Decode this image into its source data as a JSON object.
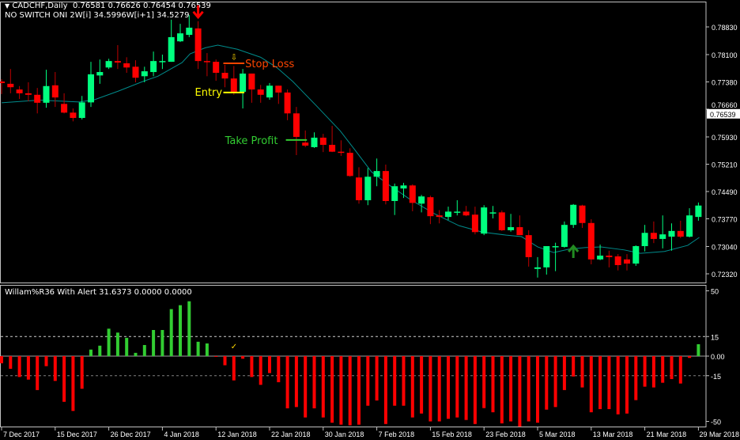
{
  "header": {
    "symbol_line": "CADCHF,Daily  0.76581 0.76626 0.76454 0.76539",
    "indicator_line": "NO SWITCH ONI 2W[i] 34.5996W[i+1] 34.5279",
    "subwindow_title": "Willam%R36 With Alert 31.6373 0.0000 0.0000"
  },
  "colors": {
    "background": "#000000",
    "bull_candle": "#00ff7f",
    "bear_candle": "#ff0000",
    "bear_wick": "#c00000",
    "moving_average": "#008b8b",
    "hist_positive": "#32cd32",
    "hist_negative": "#ff0000",
    "stop_loss": "#ff4500",
    "entry": "#ffff00",
    "take_profit": "#32cd32",
    "axis": "#c0c0c0"
  },
  "chart_data": [
    {
      "type": "candlestick",
      "symbol": "CADCHF",
      "timeframe": "Daily",
      "current_price": "0.76539",
      "y_ticks": [
        "0.78830",
        "0.78100",
        "0.77380",
        "0.76660",
        "0.75930",
        "0.75210",
        "0.74490",
        "0.73770",
        "0.73040",
        "0.72320"
      ],
      "ylim": [
        0.7232,
        0.7883
      ],
      "x_tick_labels": [
        "7 Dec 2017",
        "15 Dec 2017",
        "26 Dec 2017",
        "4 Jan 2018",
        "12 Jan 2018",
        "22 Jan 2018",
        "30 Jan 2018",
        "7 Feb 2018",
        "15 Feb 2018",
        "23 Feb 2018",
        "5 Mar 2018",
        "13 Mar 2018",
        "21 Mar 2018",
        "29 Mar 2018"
      ],
      "x_tick_every_bars": 6,
      "ohlc": [
        [
          0.7739,
          0.7745,
          0.7706,
          0.7735
        ],
        [
          0.7733,
          0.7772,
          0.7708,
          0.7724
        ],
        [
          0.7718,
          0.7727,
          0.7693,
          0.7708
        ],
        [
          0.7708,
          0.7737,
          0.7687,
          0.7704
        ],
        [
          0.7704,
          0.7722,
          0.7655,
          0.7683
        ],
        [
          0.7683,
          0.777,
          0.767,
          0.7727
        ],
        [
          0.7729,
          0.7764,
          0.7672,
          0.7697
        ],
        [
          0.768,
          0.7708,
          0.7655,
          0.7657
        ],
        [
          0.7657,
          0.7668,
          0.7634,
          0.7643
        ],
        [
          0.7643,
          0.7701,
          0.7639,
          0.7684
        ],
        [
          0.7684,
          0.7791,
          0.7672,
          0.7758
        ],
        [
          0.7755,
          0.7797,
          0.7733,
          0.7764
        ],
        [
          0.7776,
          0.7799,
          0.7772,
          0.7793
        ],
        [
          0.7793,
          0.7835,
          0.7772,
          0.7789
        ],
        [
          0.7787,
          0.7803,
          0.7762,
          0.7776
        ],
        [
          0.7778,
          0.7795,
          0.7737,
          0.7749
        ],
        [
          0.7753,
          0.7778,
          0.7737,
          0.7766
        ],
        [
          0.7764,
          0.7818,
          0.7753,
          0.7793
        ],
        [
          0.7791,
          0.781,
          0.7772,
          0.7793
        ],
        [
          0.7791,
          0.7902,
          0.7791,
          0.7856
        ],
        [
          0.7845,
          0.7891,
          0.7843,
          0.7866
        ],
        [
          0.7862,
          0.7914,
          0.7856,
          0.7881
        ],
        [
          0.7879,
          0.7898,
          0.7772,
          0.7793
        ],
        [
          0.7793,
          0.7814,
          0.7753,
          0.7791
        ],
        [
          0.7791,
          0.7797,
          0.7741,
          0.7762
        ],
        [
          0.7762,
          0.7783,
          0.7724,
          0.7747
        ],
        [
          0.7747,
          0.778,
          0.7704,
          0.771
        ],
        [
          0.7712,
          0.7772,
          0.7668,
          0.776
        ],
        [
          0.776,
          0.776,
          0.7683,
          0.7718
        ],
        [
          0.7718,
          0.773,
          0.7683,
          0.7704
        ],
        [
          0.7697,
          0.7735,
          0.7691,
          0.7728
        ],
        [
          0.7728,
          0.7728,
          0.768,
          0.771
        ],
        [
          0.771,
          0.7718,
          0.7637,
          0.7655
        ],
        [
          0.7655,
          0.7672,
          0.7545,
          0.7593
        ],
        [
          0.7578,
          0.761,
          0.7566,
          0.757
        ],
        [
          0.7566,
          0.7605,
          0.7564,
          0.7591
        ],
        [
          0.7591,
          0.7601,
          0.7553,
          0.7572
        ],
        [
          0.7572,
          0.7622,
          0.7553,
          0.7554
        ],
        [
          0.7554,
          0.7584,
          0.7543,
          0.7551
        ],
        [
          0.7551,
          0.7563,
          0.7488,
          0.749
        ],
        [
          0.7486,
          0.7513,
          0.7417,
          0.7426
        ],
        [
          0.7426,
          0.7511,
          0.7413,
          0.7488
        ],
        [
          0.7488,
          0.7536,
          0.7463,
          0.7503
        ],
        [
          0.7503,
          0.752,
          0.7415,
          0.7424
        ],
        [
          0.7424,
          0.747,
          0.7387,
          0.7463
        ],
        [
          0.7457,
          0.7472,
          0.7432,
          0.7465
        ],
        [
          0.7465,
          0.7468,
          0.7397,
          0.7419
        ],
        [
          0.7417,
          0.744,
          0.7394,
          0.7436
        ],
        [
          0.7434,
          0.7438,
          0.7363,
          0.7384
        ],
        [
          0.7386,
          0.74,
          0.7365,
          0.7382
        ],
        [
          0.7382,
          0.7409,
          0.7374,
          0.7396
        ],
        [
          0.7394,
          0.7426,
          0.7386,
          0.7396
        ],
        [
          0.7396,
          0.7411,
          0.7384,
          0.7386
        ],
        [
          0.7388,
          0.7409,
          0.7336,
          0.7342
        ],
        [
          0.7338,
          0.7413,
          0.7334,
          0.7407
        ],
        [
          0.7392,
          0.7411,
          0.7378,
          0.7394
        ],
        [
          0.7394,
          0.7399,
          0.7345,
          0.7347
        ],
        [
          0.7347,
          0.739,
          0.7343,
          0.7355
        ],
        [
          0.7355,
          0.7386,
          0.7334,
          0.7334
        ],
        [
          0.7334,
          0.7347,
          0.7251,
          0.7276
        ],
        [
          0.7245,
          0.7276,
          0.7222,
          0.7249
        ],
        [
          0.7249,
          0.7305,
          0.723,
          0.7305
        ],
        [
          0.7303,
          0.7314,
          0.7239,
          0.7305
        ],
        [
          0.7303,
          0.737,
          0.7301,
          0.7361
        ],
        [
          0.7361,
          0.7416,
          0.7353,
          0.7414
        ],
        [
          0.7412,
          0.7414,
          0.7353,
          0.7366
        ],
        [
          0.7366,
          0.7376,
          0.7257,
          0.727
        ],
        [
          0.727,
          0.7309,
          0.7268,
          0.728
        ],
        [
          0.728,
          0.7293,
          0.7249,
          0.7276
        ],
        [
          0.7278,
          0.7284,
          0.7241,
          0.7255
        ],
        [
          0.727,
          0.7284,
          0.7241,
          0.7259
        ],
        [
          0.7259,
          0.7307,
          0.7253,
          0.7305
        ],
        [
          0.7305,
          0.7361,
          0.7291,
          0.734
        ],
        [
          0.734,
          0.737,
          0.7313,
          0.7324
        ],
        [
          0.7324,
          0.7386,
          0.7299,
          0.7336
        ],
        [
          0.733,
          0.7365,
          0.7293,
          0.7345
        ],
        [
          0.7345,
          0.7372,
          0.7326,
          0.733
        ],
        [
          0.733,
          0.7405,
          0.7328,
          0.7386
        ],
        [
          0.7382,
          0.742,
          0.7372,
          0.7412
        ]
      ],
      "moving_average": [
        [
          0,
          0.7683
        ],
        [
          4.2,
          0.769
        ],
        [
          8.7,
          0.7685
        ],
        [
          10.4,
          0.7691
        ],
        [
          13.1,
          0.7714
        ],
        [
          15.8,
          0.7739
        ],
        [
          17.5,
          0.7753
        ],
        [
          20.2,
          0.7789
        ],
        [
          21.1,
          0.7812
        ],
        [
          22.8,
          0.7828
        ],
        [
          24.2,
          0.7835
        ],
        [
          26.4,
          0.7824
        ],
        [
          29,
          0.7803
        ],
        [
          30.8,
          0.7776
        ],
        [
          32.6,
          0.7739
        ],
        [
          35.2,
          0.7676
        ],
        [
          37.9,
          0.7609
        ],
        [
          39.6,
          0.7557
        ],
        [
          41.4,
          0.7501
        ],
        [
          43.2,
          0.7469
        ],
        [
          45.8,
          0.7427
        ],
        [
          48.5,
          0.739
        ],
        [
          51.2,
          0.7359
        ],
        [
          53.8,
          0.7342
        ],
        [
          56.5,
          0.7334
        ],
        [
          58.2,
          0.733
        ],
        [
          60,
          0.7303
        ],
        [
          61.8,
          0.7288
        ],
        [
          63.5,
          0.7297
        ],
        [
          65.3,
          0.7301
        ],
        [
          67.1,
          0.7303
        ],
        [
          69.7,
          0.7295
        ],
        [
          71.5,
          0.7286
        ],
        [
          74.2,
          0.7291
        ],
        [
          76.8,
          0.7307
        ],
        [
          78.1,
          0.7328
        ]
      ],
      "signals": [
        {
          "type": "sell-arrow",
          "bar": 22
        },
        {
          "type": "small-down-arrow",
          "bar": 26
        },
        {
          "type": "buy-arrow",
          "bar": 64
        }
      ],
      "annotations": [
        {
          "label": "Stop Loss",
          "price": 0.7787,
          "from_bar": 25,
          "to_bar": 27,
          "color_key": "stop_loss"
        },
        {
          "label": "Entry",
          "price": 0.771,
          "from_bar": 25,
          "to_bar": 27,
          "color_key": "entry"
        },
        {
          "label": "Take Profit",
          "price": 0.7585,
          "from_bar": 32,
          "to_bar": 34,
          "color_key": "take_profit"
        }
      ]
    },
    {
      "type": "bar",
      "title": "Willam%R36 With Alert 31.6373 0.0000 0.0000",
      "y_ticks": [
        "50",
        "15",
        "0.00",
        "-15",
        "-50"
      ],
      "levels": [
        15,
        0,
        -15
      ],
      "ylim": [
        -50,
        50
      ],
      "check_mark_bar": 26,
      "values": [
        -5.5,
        -9.7,
        -16,
        -18,
        -26,
        -7.7,
        -19,
        -35,
        -42,
        -25,
        5,
        8,
        21,
        18,
        14,
        2.5,
        8.5,
        20,
        20,
        36,
        39,
        42,
        11,
        9.7,
        -0.5,
        -7,
        -18.6,
        -2,
        -16,
        -22,
        -13,
        -20,
        -40,
        -39,
        -47,
        -40,
        -47,
        -51,
        -52.5,
        -53,
        -52.5,
        -38,
        -34,
        -52,
        -38,
        -38,
        -47,
        -44,
        -50,
        -50,
        -48,
        -47,
        -48.9,
        -52,
        -39.8,
        -43,
        -51.5,
        -50,
        -54,
        -50,
        -51,
        -41,
        -39,
        -26,
        -15.6,
        -24,
        -43,
        -40.6,
        -40.6,
        -44.6,
        -44,
        -33.7,
        -23.4,
        -24,
        -20.4,
        -17.6,
        -21,
        -1.4,
        9.1
      ]
    }
  ]
}
